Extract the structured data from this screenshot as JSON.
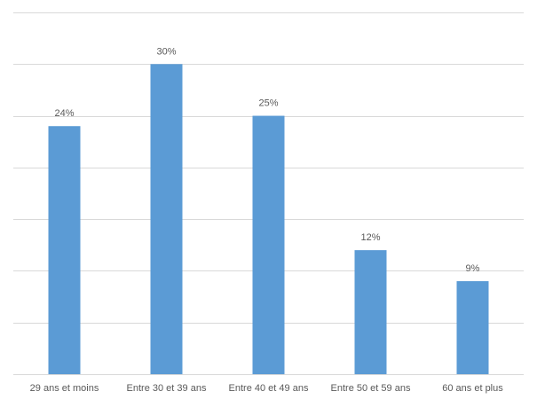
{
  "chart_data": {
    "type": "bar",
    "title": "",
    "xlabel": "",
    "ylabel": "",
    "categories": [
      "29 ans et moins",
      "Entre 30 et 39 ans",
      "Entre 40 et 49 ans",
      "Entre 50 et 59 ans",
      "60 ans et plus"
    ],
    "values": [
      24,
      30,
      25,
      12,
      9
    ],
    "data_labels": [
      "24%",
      "30%",
      "25%",
      "12%",
      "9%"
    ],
    "ylim": [
      0,
      35
    ],
    "y_gridline_step": 5,
    "y_tick_labels_visible": false,
    "grid": true,
    "legend": "none",
    "colors": {
      "bar": "#5b9bd5",
      "gridline": "#d9d9d9",
      "axis": "#d9d9d9",
      "text": "#595959"
    }
  }
}
